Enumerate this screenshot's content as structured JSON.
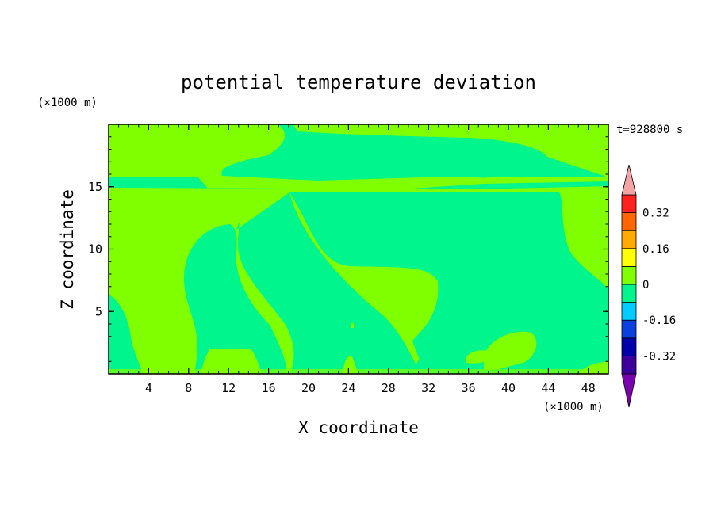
{
  "chart_data": {
    "type": "heatmap",
    "title": "potential temperature deviation",
    "xlabel": "X coordinate",
    "ylabel": "Z coordinate",
    "x_unit": "(×1000 m)",
    "y_unit": "(×1000 m)",
    "time_label": "t=928800 s",
    "xlim": [
      0,
      50
    ],
    "ylim": [
      0,
      20
    ],
    "x_ticks": [
      4,
      8,
      12,
      16,
      20,
      24,
      28,
      32,
      36,
      40,
      44,
      48
    ],
    "y_ticks": [
      5,
      10,
      15
    ],
    "colorbar": {
      "levels": [
        -0.48,
        -0.4,
        -0.32,
        -0.24,
        -0.16,
        -0.08,
        0,
        0.08,
        0.16,
        0.24,
        0.32,
        0.4,
        0.48
      ],
      "colors": [
        "#7b00b0",
        "#3a0099",
        "#0000aa",
        "#0a40e0",
        "#00ccff",
        "#00f58c",
        "#80ff00",
        "#ffff00",
        "#ffaa00",
        "#ff6600",
        "#ff2020",
        "#f4a4a4"
      ],
      "tick_labels": [
        "0.32",
        "0.16",
        "0",
        "-0.16",
        "-0.32"
      ],
      "tick_values": [
        0.32,
        0.16,
        0,
        -0.16,
        -0.32
      ]
    },
    "field": {
      "background_level": "0 to 0.08",
      "regions": [
        {
          "level": "0 to 0.08",
          "description_extent_x": [
            0,
            50
          ],
          "extent_z": [
            0,
            20
          ]
        },
        {
          "level": "-0.08 to 0",
          "extent_x": [
            0,
            50
          ],
          "extent_z": [
            15.3,
            19.8
          ]
        },
        {
          "level": "-0.08 to 0",
          "extent_x": [
            18.5,
            50
          ],
          "extent_z": [
            0,
            14.5
          ]
        },
        {
          "level": "-0.08 to 0",
          "extent_x": [
            7.5,
            12.5
          ],
          "extent_z": [
            0.6,
            12
          ]
        },
        {
          "level": "-0.08 to 0",
          "extent_x": [
            0,
            3
          ],
          "extent_z": [
            0.5,
            6.2
          ]
        }
      ]
    }
  }
}
